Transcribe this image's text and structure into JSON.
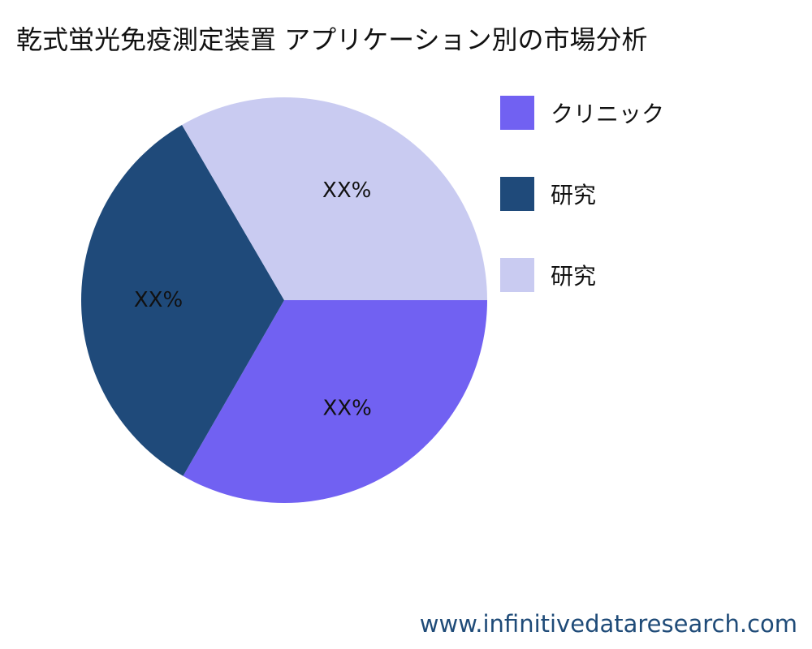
{
  "title": "乾式蛍光免疫測定装置 アプリケーション別の市場分析",
  "chart_data": {
    "type": "pie",
    "categories": [
      "クリニック",
      "研究",
      "研究"
    ],
    "values": [
      33.3,
      33.3,
      33.4
    ],
    "data_labels": [
      "XX%",
      "XX%",
      "XX%"
    ],
    "colors": [
      "#7161f2",
      "#1f4a7a",
      "#c9cbf1"
    ],
    "legend_placement": "right",
    "start_angle_deg": 0,
    "direction": "clockwise"
  },
  "legend": {
    "items": [
      {
        "label": "クリニック",
        "color": "#7161f2"
      },
      {
        "label": "研究",
        "color": "#1f4a7a"
      },
      {
        "label": "研究",
        "color": "#c9cbf1"
      }
    ]
  },
  "watermark": "www.infinitivedataresearch.com"
}
